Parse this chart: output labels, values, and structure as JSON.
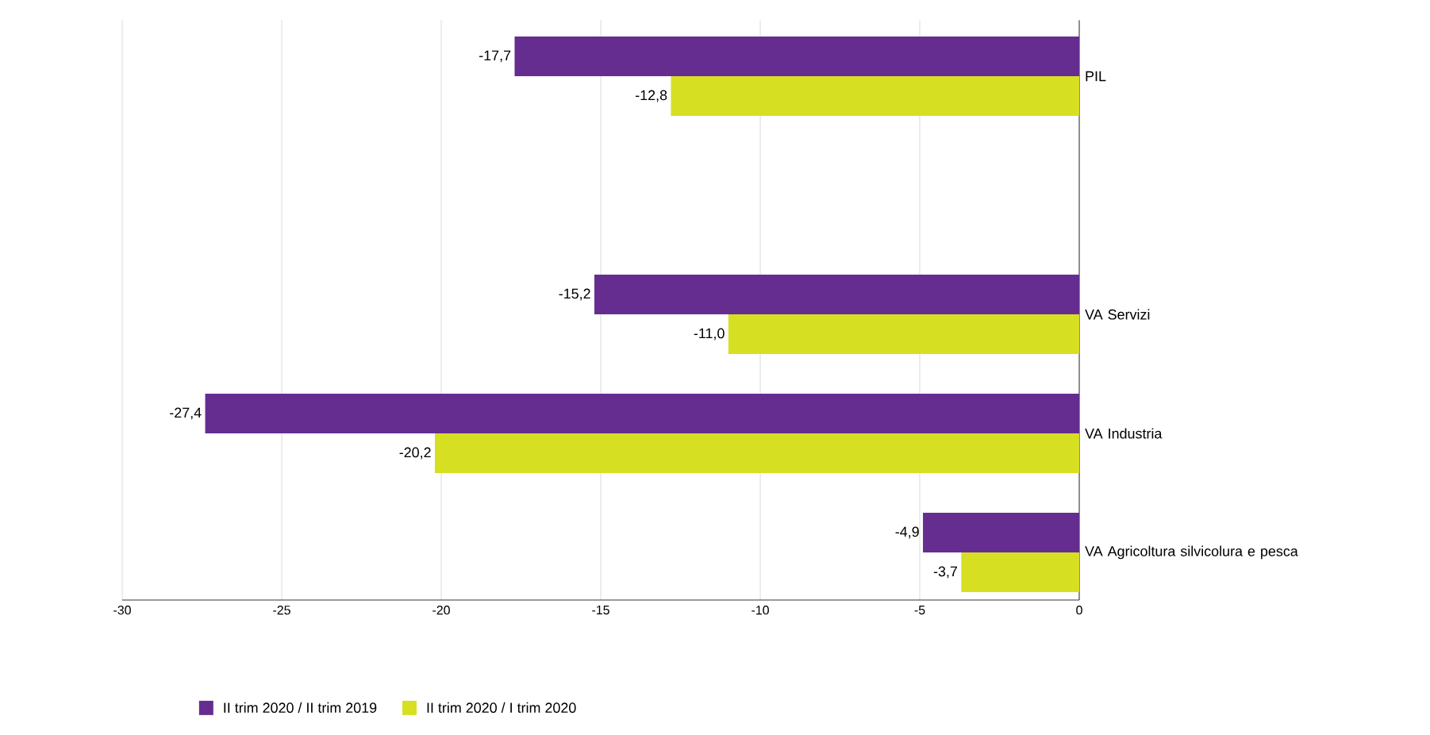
{
  "chart_data": {
    "type": "bar",
    "orientation": "horizontal",
    "categories": [
      "PIL",
      null,
      "VA Servizi",
      "VA Industria",
      "VA Agricoltura silvicolura e pesca"
    ],
    "series": [
      {
        "name": "II trim 2020 / II trim 2019",
        "color": "#662d91",
        "values": [
          -17.7,
          null,
          -15.2,
          -27.4,
          -4.9
        ],
        "value_labels": [
          "-17,7",
          null,
          "-15,2",
          "-27,4",
          "-4,9"
        ]
      },
      {
        "name": "II trim 2020 / I trim 2020",
        "color": "#d7df23",
        "values": [
          -12.8,
          null,
          -11.0,
          -20.2,
          -3.7
        ],
        "value_labels": [
          "-12,8",
          null,
          "-11,0",
          "-20,2",
          "-3,7"
        ]
      }
    ],
    "xlim": [
      -30,
      0
    ],
    "xticks": [
      -30,
      -25,
      -20,
      -15,
      -10,
      -5,
      0
    ],
    "grid": "x",
    "legend": "bottom left"
  }
}
